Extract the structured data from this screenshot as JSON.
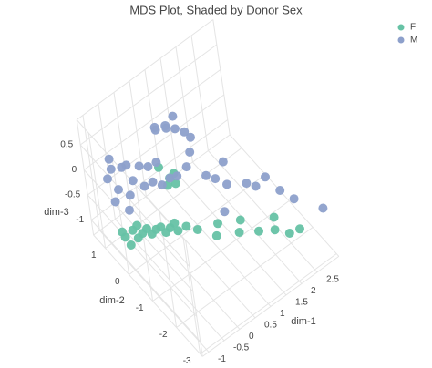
{
  "chart_data": {
    "type": "scatter3d",
    "title": "MDS Plot, Shaded by Donor Sex",
    "xlabel": "dim-1",
    "ylabel": "dim-2",
    "zlabel": "dim-3",
    "xlim": [
      -1.2,
      3.2
    ],
    "ylim": [
      -3.1,
      1.5
    ],
    "zlim": [
      -1.3,
      1.0
    ],
    "xticks": [
      -1,
      -0.5,
      0,
      0.5,
      1,
      1.5,
      2,
      2.5
    ],
    "yticks": [
      1,
      0,
      -1,
      -2,
      -3
    ],
    "zticks": [
      0.5,
      0,
      -0.5,
      -1
    ],
    "grid": true,
    "legend": "top-right",
    "series": [
      {
        "name": "F",
        "color": "#66c2a5",
        "x": [
          -0.8,
          -0.6,
          -0.5,
          -0.4,
          -0.3,
          -0.2,
          -0.1,
          0.0,
          0.1,
          -0.7,
          -0.9,
          0.2,
          0.3,
          -0.3,
          0.4,
          0.5,
          0.7,
          1.0,
          1.2,
          1.5,
          1.7,
          1.9,
          2.2,
          2.5,
          2.7,
          2.4,
          0.1,
          0.3,
          0.0,
          0.2,
          -0.1
        ],
        "y": [
          0.6,
          0.3,
          0.7,
          0.4,
          0.1,
          0.5,
          0.2,
          -0.1,
          0.3,
          0.9,
          0.2,
          0.0,
          -0.2,
          0.8,
          0.1,
          -0.3,
          -0.5,
          -0.9,
          -0.7,
          -1.2,
          -1.0,
          -1.5,
          -1.8,
          -2.0,
          -2.2,
          -1.5,
          -0.5,
          -0.4,
          -0.2,
          -0.6,
          -0.7
        ],
        "z": [
          -1.05,
          -1.0,
          -1.1,
          -1.05,
          -0.95,
          -1.1,
          -1.0,
          -0.95,
          -1.1,
          -1.15,
          -0.95,
          -1.0,
          -1.0,
          -1.15,
          -1.05,
          -0.95,
          -1.0,
          -1.05,
          -1.0,
          -1.05,
          -1.0,
          -1.05,
          -1.0,
          -1.1,
          -1.0,
          -1.0,
          0.3,
          0.25,
          0.4,
          0.2,
          0.35
        ]
      },
      {
        "name": "M",
        "color": "#8da0cb",
        "x": [
          -0.9,
          -0.8,
          -0.7,
          -0.6,
          -0.5,
          -0.4,
          -0.3,
          -0.2,
          -0.1,
          0.0,
          0.1,
          0.2,
          0.3,
          -0.6,
          -1.0,
          -0.8,
          0.4,
          0.5,
          0.3,
          0.5,
          0.6,
          0.7,
          0.4,
          0.8,
          0.9,
          1.0,
          0.8,
          1.0,
          1.2,
          1.4,
          1.5,
          1.8,
          2.0,
          2.2,
          2.4,
          2.6,
          3.0,
          0.7,
          1.1
        ],
        "y": [
          0.9,
          0.6,
          1.0,
          0.4,
          0.8,
          0.5,
          0.9,
          0.3,
          0.6,
          0.2,
          0.5,
          0.1,
          0.4,
          1.2,
          0.5,
          0.2,
          0.0,
          -0.2,
          0.2,
          0.0,
          0.2,
          -0.1,
          0.4,
          0.1,
          -0.2,
          -0.3,
          -0.5,
          -0.8,
          -0.9,
          -1.1,
          -0.9,
          -1.4,
          -1.5,
          -1.7,
          -2.0,
          -2.3,
          -3.0,
          -0.4,
          -1.3
        ],
        "z": [
          0.0,
          -0.1,
          0.05,
          -0.2,
          0.1,
          -0.05,
          0.0,
          -0.15,
          0.05,
          -0.1,
          0.0,
          -0.2,
          0.05,
          0.1,
          -0.2,
          -0.3,
          -0.1,
          0.0,
          0.8,
          0.85,
          0.75,
          0.8,
          0.7,
          0.9,
          0.7,
          0.6,
          0.5,
          0.1,
          0.0,
          -0.1,
          0.2,
          -0.1,
          -0.2,
          0.0,
          -0.2,
          -0.3,
          -0.3,
          0.2,
          -0.4
        ]
      }
    ]
  }
}
